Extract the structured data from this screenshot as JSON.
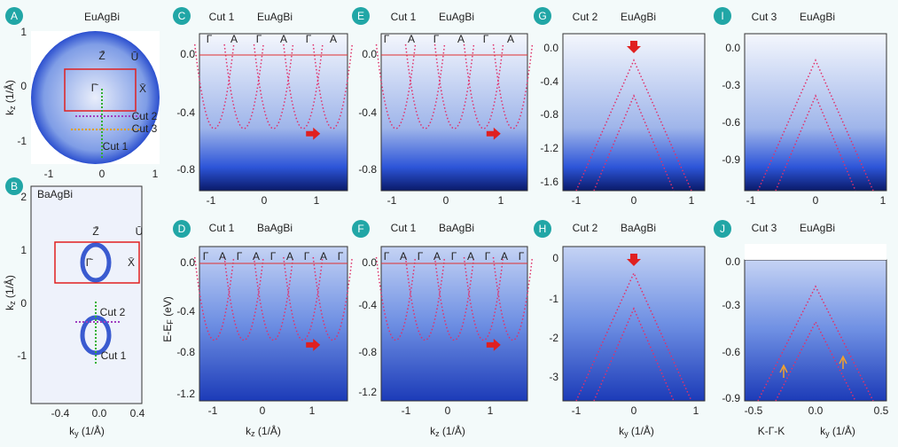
{
  "panels": [
    {
      "badge": "A",
      "cut": null,
      "title": "EuAgBi",
      "yticks": [
        "1",
        "0",
        "-1"
      ],
      "xticks": [
        "-1",
        "0",
        "1"
      ],
      "ylabel": [
        "k",
        "z",
        " (1/Å)"
      ],
      "xlabel": null,
      "symmetry": [],
      "annotations": [
        "Z̄",
        "Ū",
        "Γ̄",
        "X̄",
        "Cut 2",
        "Cut 3",
        "Cut 1"
      ]
    },
    {
      "badge": "B",
      "cut": null,
      "title": null,
      "yticks": [
        "2",
        "1",
        "0",
        "-1"
      ],
      "xticks": [
        "-0.4",
        "0.0",
        "0.4"
      ],
      "ylabel": [
        "k",
        "z",
        " (1/Å)"
      ],
      "xlabel": [
        "k",
        "y",
        " (1/Å)"
      ],
      "symmetry": [],
      "annotations": [
        "BaAgBi",
        "Z̄",
        "Ū",
        "Γ̄",
        "X̄",
        "Cut 2",
        "Cut 1"
      ]
    },
    {
      "badge": "C",
      "cut": "Cut 1",
      "title": "EuAgBi",
      "yticks": [
        "0.0",
        "-0.4",
        "-0.8"
      ],
      "xticks": [
        "-1",
        "0",
        "1"
      ],
      "ylabel": null,
      "xlabel": null,
      "symmetry": [
        "Γ",
        "A",
        "Γ",
        "A",
        "Γ",
        "A"
      ],
      "annotations": []
    },
    {
      "badge": "D",
      "cut": "Cut 1",
      "title": "BaAgBi",
      "yticks": [
        "0.0",
        "-0.4",
        "-0.8",
        "-1.2"
      ],
      "xticks": [
        "-1",
        "0",
        "1"
      ],
      "ylabel": [
        "E-E",
        "F",
        " (eV)"
      ],
      "xlabel": [
        "k",
        "z",
        " (1/Å)"
      ],
      "symmetry": [
        "Γ",
        "A",
        "Γ",
        "A",
        "Γ",
        "A",
        "Γ",
        "A",
        "Γ"
      ],
      "annotations": []
    },
    {
      "badge": "E",
      "cut": "Cut 1",
      "title": "EuAgBi",
      "yticks": [
        "0.0",
        "-0.4",
        "-0.8"
      ],
      "xticks": [
        "-1",
        "0",
        "1"
      ],
      "ylabel": null,
      "xlabel": null,
      "symmetry": [
        "Γ",
        "A",
        "Γ",
        "A",
        "Γ",
        "A"
      ],
      "annotations": []
    },
    {
      "badge": "F",
      "cut": "Cut 1",
      "title": "BaAgBi",
      "yticks": [
        "0.0",
        "-0.4",
        "-0.8",
        "-1.2"
      ],
      "xticks": [
        "-1",
        "0",
        "1"
      ],
      "ylabel": null,
      "xlabel": [
        "k",
        "z",
        " (1/Å)"
      ],
      "symmetry": [
        "Γ",
        "A",
        "Γ",
        "A",
        "Γ",
        "A",
        "Γ",
        "A",
        "Γ"
      ],
      "annotations": []
    },
    {
      "badge": "G",
      "cut": "Cut 2",
      "title": "EuAgBi",
      "yticks": [
        "0.0",
        "-0.4",
        "-0.8",
        "-1.2",
        "-1.6"
      ],
      "xticks": [
        "-1",
        "0",
        "1"
      ],
      "ylabel": null,
      "xlabel": null,
      "symmetry": [],
      "annotations": []
    },
    {
      "badge": "H",
      "cut": "Cut 2",
      "title": "BaAgBi",
      "yticks": [
        "0",
        "-1",
        "-2",
        "-3"
      ],
      "xticks": [
        "-1",
        "0",
        "1"
      ],
      "ylabel": null,
      "xlabel": [
        "k",
        "y",
        " (1/Å)"
      ],
      "symmetry": [],
      "annotations": []
    },
    {
      "badge": "I",
      "cut": "Cut 3",
      "title": "EuAgBi",
      "yticks": [
        "0.0",
        "-0.3",
        "-0.6",
        "-0.9"
      ],
      "xticks": [
        "-1",
        "0",
        "1"
      ],
      "ylabel": null,
      "xlabel": null,
      "symmetry": [],
      "annotations": []
    },
    {
      "badge": "J",
      "cut": "Cut 3",
      "title": "EuAgBi",
      "yticks": [
        "0.0",
        "-0.3",
        "-0.6",
        "-0.9"
      ],
      "xticks": [
        "-0.5",
        "0.0",
        "0.5"
      ],
      "ylabel": null,
      "xlabel": [
        "k",
        "y",
        " (1/Å)"
      ],
      "xprefix": "K-Γ-K",
      "symmetry": [],
      "annotations": []
    }
  ]
}
